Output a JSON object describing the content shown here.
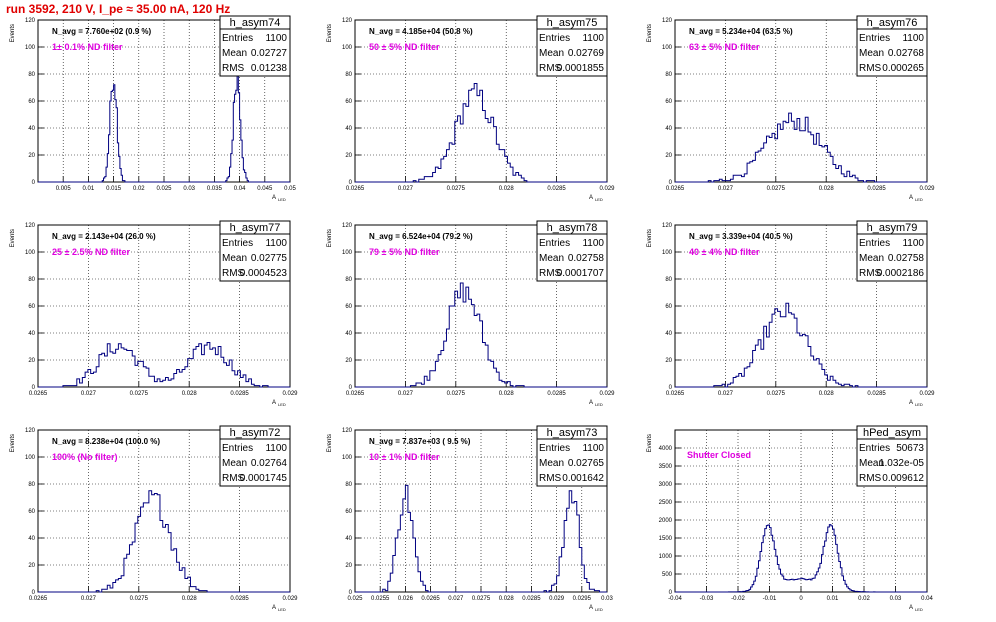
{
  "header": "run 3592,   210 V, I_pe ≈ 35.00 nA, 120 Hz",
  "colors": {
    "hist": "#000080",
    "annotation": "#e000e0",
    "header": "#e00000"
  },
  "chart_data": [
    {
      "type": "bar",
      "name": "h_asym74",
      "stats": {
        "entries": "1100",
        "mean": "0.02727",
        "rms": "0.01238"
      },
      "navg": "N_avg = 7.760e+02 (0.9 %)",
      "label": "1± 0.1% ND filter",
      "xlabel": "A",
      "xlabel_sub": "LED",
      "ylabel": "Events",
      "xlim": [
        0.0,
        0.05
      ],
      "ylim": [
        0,
        120
      ],
      "xticks": [
        "0.005",
        "0.01",
        "0.015",
        "0.02",
        "0.025",
        "0.03",
        "0.035",
        "0.04",
        "0.045",
        "0.05"
      ],
      "xtick_vals": [
        0.005,
        0.01,
        0.015,
        0.02,
        0.025,
        0.03,
        0.035,
        0.04,
        0.045,
        0.05
      ],
      "yticks": [
        0,
        20,
        40,
        60,
        80,
        100,
        120
      ],
      "peaks": [
        {
          "mu": 0.015,
          "sigma": 0.0007,
          "n": 550
        },
        {
          "mu": 0.0395,
          "sigma": 0.0007,
          "n": 550
        }
      ],
      "binw": 0.00025
    },
    {
      "type": "bar",
      "name": "h_asym75",
      "stats": {
        "entries": "1100",
        "mean": "0.02769",
        "rms": "0.0001855"
      },
      "navg": "N_avg = 4.185e+04 (50.8 %)",
      "label": "50 ± 5% ND filter",
      "xlabel": "A",
      "xlabel_sub": "LED",
      "ylabel": "Events",
      "xlim": [
        0.0265,
        0.029
      ],
      "ylim": [
        0,
        120
      ],
      "xticks": [
        "0.0265",
        "0.027",
        "0.0275",
        "0.028",
        "0.0285",
        "0.029"
      ],
      "xtick_vals": [
        0.0265,
        0.027,
        0.0275,
        0.028,
        0.0285,
        0.029
      ],
      "yticks": [
        0,
        20,
        40,
        60,
        80,
        100,
        120
      ],
      "peaks": [
        {
          "mu": 0.02769,
          "sigma": 0.000186,
          "n": 1100
        }
      ],
      "binw": 2.75e-05
    },
    {
      "type": "bar",
      "name": "h_asym76",
      "stats": {
        "entries": "1100",
        "mean": "0.02768",
        "rms": "0.000265"
      },
      "navg": "N_avg = 5.234e+04 (63.5 %)",
      "label": "63 ± 5% ND filter",
      "xlabel": "A",
      "xlabel_sub": "LED",
      "ylabel": "Events",
      "xlim": [
        0.0265,
        0.029
      ],
      "ylim": [
        0,
        120
      ],
      "xticks": [
        "0.0265",
        "0.027",
        "0.0275",
        "0.028",
        "0.0285",
        "0.029"
      ],
      "xtick_vals": [
        0.0265,
        0.027,
        0.0275,
        0.028,
        0.0285,
        0.029
      ],
      "yticks": [
        0,
        20,
        40,
        60,
        80,
        100,
        120
      ],
      "peaks": [
        {
          "mu": 0.02768,
          "sigma": 0.000265,
          "n": 1100
        }
      ],
      "binw": 2.75e-05
    },
    {
      "type": "bar",
      "name": "h_asym77",
      "stats": {
        "entries": "1100",
        "mean": "0.02775",
        "rms": "0.0004523"
      },
      "navg": "N_avg = 2.143e+04 (26.0 %)",
      "label": "25 ± 2.5% ND filter",
      "xlabel": "A",
      "xlabel_sub": "LED",
      "ylabel": "Events",
      "xlim": [
        0.0265,
        0.029
      ],
      "ylim": [
        0,
        120
      ],
      "xticks": [
        "0.0265",
        "0.027",
        "0.0275",
        "0.028",
        "0.0285",
        "0.029"
      ],
      "xtick_vals": [
        0.0265,
        0.027,
        0.0275,
        0.028,
        0.0285,
        0.029
      ],
      "yticks": [
        0,
        20,
        40,
        60,
        80,
        100,
        120
      ],
      "peaks": [
        {
          "mu": 0.0273,
          "sigma": 0.0002,
          "n": 550
        },
        {
          "mu": 0.0282,
          "sigma": 0.0002,
          "n": 550
        }
      ],
      "binw": 2.75e-05
    },
    {
      "type": "bar",
      "name": "h_asym78",
      "stats": {
        "entries": "1100",
        "mean": "0.02758",
        "rms": "0.0001707"
      },
      "navg": "N_avg = 6.524e+04 (79.2 %)",
      "label": "79 ± 5% ND filter",
      "xlabel": "A",
      "xlabel_sub": "LED",
      "ylabel": "Events",
      "xlim": [
        0.0265,
        0.029
      ],
      "ylim": [
        0,
        120
      ],
      "xticks": [
        "0.0265",
        "0.027",
        "0.0275",
        "0.028",
        "0.0285",
        "0.029"
      ],
      "xtick_vals": [
        0.0265,
        0.027,
        0.0275,
        0.028,
        0.0285,
        0.029
      ],
      "yticks": [
        0,
        20,
        40,
        60,
        80,
        100,
        120
      ],
      "peaks": [
        {
          "mu": 0.02758,
          "sigma": 0.000171,
          "n": 1100
        }
      ],
      "binw": 2.75e-05
    },
    {
      "type": "bar",
      "name": "h_asym79",
      "stats": {
        "entries": "1100",
        "mean": "0.02758",
        "rms": "0.0002186"
      },
      "navg": "N_avg = 3.339e+04 (40.5 %)",
      "label": "40 ± 4% ND filter",
      "xlabel": "A",
      "xlabel_sub": "LED",
      "ylabel": "Events",
      "xlim": [
        0.0265,
        0.029
      ],
      "ylim": [
        0,
        120
      ],
      "xticks": [
        "0.0265",
        "0.027",
        "0.0275",
        "0.028",
        "0.0285",
        "0.029"
      ],
      "xtick_vals": [
        0.0265,
        0.027,
        0.0275,
        0.028,
        0.0285,
        0.029
      ],
      "yticks": [
        0,
        20,
        40,
        60,
        80,
        100,
        120
      ],
      "peaks": [
        {
          "mu": 0.02758,
          "sigma": 0.000219,
          "n": 1100
        }
      ],
      "binw": 2.75e-05
    },
    {
      "type": "bar",
      "name": "h_asym72",
      "stats": {
        "entries": "1100",
        "mean": "0.02764",
        "rms": "0.0001745"
      },
      "navg": "N_avg = 8.238e+04 (100.0 %)",
      "label": "100% (No filter)",
      "xlabel": "A",
      "xlabel_sub": "LED",
      "ylabel": "Events",
      "xlim": [
        0.0265,
        0.029
      ],
      "ylim": [
        0,
        120
      ],
      "xticks": [
        "0.0265",
        "0.027",
        "0.0275",
        "0.028",
        "0.0285",
        "0.029"
      ],
      "xtick_vals": [
        0.0265,
        0.027,
        0.0275,
        0.028,
        0.0285,
        0.029
      ],
      "yticks": [
        0,
        20,
        40,
        60,
        80,
        100,
        120
      ],
      "peaks": [
        {
          "mu": 0.02764,
          "sigma": 0.000175,
          "n": 1100
        }
      ],
      "binw": 2.75e-05
    },
    {
      "type": "bar",
      "name": "h_asym73",
      "stats": {
        "entries": "1100",
        "mean": "0.02765",
        "rms": "0.001642"
      },
      "navg": "N_avg = 7.837e+03 ( 9.5 %)",
      "label": "10 ± 1% ND filter",
      "xlabel": "A",
      "xlabel_sub": "LED",
      "ylabel": "Events",
      "xlim": [
        0.025,
        0.03
      ],
      "ylim": [
        0,
        120
      ],
      "xticks": [
        "0.025",
        "0.0255",
        "0.026",
        "0.0265",
        "0.027",
        "0.0275",
        "0.028",
        "0.0285",
        "0.029",
        "0.0295",
        "0.03"
      ],
      "xtick_vals": [
        0.025,
        0.0255,
        0.026,
        0.0265,
        0.027,
        0.0275,
        0.028,
        0.0285,
        0.029,
        0.0295,
        0.03
      ],
      "yticks": [
        0,
        20,
        40,
        60,
        80,
        100,
        120
      ],
      "peaks": [
        {
          "mu": 0.026,
          "sigma": 0.00015,
          "n": 550
        },
        {
          "mu": 0.0293,
          "sigma": 0.00015,
          "n": 550
        }
      ],
      "binw": 5e-05
    },
    {
      "type": "bar",
      "name": "hPed_asym",
      "stats": {
        "entries": "50673",
        "mean": "1.032e-05",
        "rms": "0.009612"
      },
      "navg": "",
      "label": "Shutter Closed",
      "xlabel": "A",
      "xlabel_sub": "LED",
      "ylabel": "Events",
      "xlim": [
        -0.04,
        0.04
      ],
      "ylim": [
        0,
        4500
      ],
      "xticks": [
        "-0.04",
        "-0.03",
        "-0.02",
        "-0.01",
        "0",
        "0.01",
        "0.02",
        "0.03",
        "0.04"
      ],
      "xtick_vals": [
        -0.04,
        -0.03,
        -0.02,
        -0.01,
        0,
        0.01,
        0.02,
        0.03,
        0.04
      ],
      "yticks": [
        0,
        500,
        1000,
        1500,
        2000,
        2500,
        3000,
        3500,
        4000
      ],
      "peaks": [
        {
          "mu": -0.0105,
          "sigma": 0.0022,
          "n": 19000
        },
        {
          "mu": 0.0095,
          "sigma": 0.0022,
          "n": 19000
        },
        {
          "mu": 0.0,
          "sigma": 0.007,
          "n": 12673
        }
      ],
      "binw": 0.0005
    }
  ]
}
